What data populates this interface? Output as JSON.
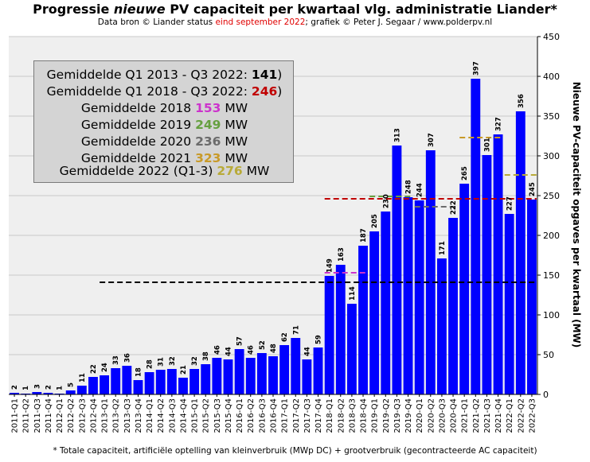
{
  "title": {
    "part1": "Progressie ",
    "part2": "nieuwe",
    "part3": " PV capaciteit  per kwartaal vlg. administratie  Liander*"
  },
  "subtitle": {
    "part1": "Data bron © Liander status ",
    "part2": "eind september 2022",
    "part3": "; grafiek © Peter J. Segaar / www.polderpv.nl"
  },
  "footnote": "* Totale capaciteit, artificiële optelling van kleinverbruik (MWp DC) + grootverbruik (gecontracteerde AC capaciteit)",
  "infobox": {
    "lines": [
      {
        "label": "Gemiddelde Q1 2013 - Q3 2022: ",
        "value": "141",
        "suffix": ")",
        "color": "#000000"
      },
      {
        "label": "Gemiddelde Q1 2018 - Q3 2022: ",
        "value": "246",
        "suffix": ")",
        "color": "#c00000"
      },
      {
        "label": "Gemiddelde 2018 ",
        "value": "153",
        "suffix": " MW",
        "color": "#cc33cc"
      },
      {
        "label": "Gemiddelde 2019 ",
        "value": "249",
        "suffix": " MW",
        "color": "#66a040"
      },
      {
        "label": "Gemiddelde 2020 ",
        "value": "236",
        "suffix": " MW",
        "color": "#6b6b6b"
      },
      {
        "label": "Gemiddelde 2021 ",
        "value": "323",
        "suffix": " MW",
        "color": "#c89a28"
      },
      {
        "label": "Gemiddelde 2022 (Q1-3) ",
        "value": "276",
        "suffix": " MW",
        "color": "#b8aa38"
      }
    ]
  },
  "chart_data": {
    "type": "bar",
    "categories": [
      "2011-Q1",
      "2011-Q2",
      "2011-Q3",
      "2011-Q4",
      "2012-Q1",
      "2012-Q2",
      "2012-Q3",
      "2012-Q4",
      "2013-Q1",
      "2013-Q2",
      "2013-Q3",
      "2013-Q4",
      "2014-Q1",
      "2014-Q2",
      "2014-Q3",
      "2014-Q4",
      "2015-Q1",
      "2015-Q2",
      "2015-Q3",
      "2015-Q4",
      "2016-Q1",
      "2016-Q2",
      "2016-Q3",
      "2016-Q4",
      "2017-Q1",
      "2017-Q2",
      "2017-Q3",
      "2017-Q4",
      "2018-Q1",
      "2018-Q2",
      "2018-Q3",
      "2018-Q4",
      "2019-Q1",
      "2019-Q2",
      "2019-Q3",
      "2019-Q4",
      "2020-Q1",
      "2020-Q2",
      "2020-Q3",
      "2020-Q4",
      "2021-Q1",
      "2021-Q2",
      "2021-Q3",
      "2021-Q4",
      "2022-Q1",
      "2022-Q2",
      "2022-Q3"
    ],
    "values": [
      2,
      1,
      3,
      2,
      1,
      5,
      11,
      22,
      24,
      33,
      36,
      18,
      28,
      31,
      32,
      21,
      32,
      38,
      46,
      44,
      57,
      46,
      52,
      48,
      62,
      71,
      44,
      59,
      149,
      163,
      114,
      187,
      205,
      230,
      313,
      248,
      244,
      307,
      171,
      222,
      265,
      397,
      301,
      327,
      227,
      356,
      245
    ],
    "data_labels": [
      "2",
      "1",
      "3",
      "2",
      "1",
      "5",
      "11",
      "22",
      "24",
      "33",
      "36",
      "18",
      "28",
      "31",
      "32",
      "21",
      "32",
      "38",
      "46",
      "44",
      "57",
      "46",
      "52",
      "48",
      "62",
      "71",
      "44",
      "59",
      "149",
      "163",
      "114",
      "187",
      "205",
      "230",
      "313",
      "248",
      "244",
      "307",
      "171",
      "222",
      "265",
      "397",
      "301",
      "327",
      "227",
      "356",
      "245"
    ],
    "bar_color": "#0000ff",
    "ylabel": "Nieuwe PV-capaciteit opgaves per kwartaal (MW)",
    "ylim": [
      0,
      450
    ],
    "yticks": [
      0,
      50,
      100,
      150,
      200,
      250,
      300,
      350,
      400,
      450
    ],
    "ytick_labels": [
      "0",
      "50",
      "100",
      "150",
      "200",
      "250",
      "300",
      "350",
      "400",
      "450"
    ],
    "y_axis_side": "right",
    "grid": true,
    "average_lines": [
      {
        "value": 141,
        "from": "2013-Q1",
        "to": "2022-Q3",
        "color": "#000000"
      },
      {
        "value": 246,
        "from": "2018-Q1",
        "to": "2022-Q3",
        "color": "#c00000"
      },
      {
        "value": 153,
        "from": "2018-Q1",
        "to": "2018-Q4",
        "color": "#cc33cc"
      },
      {
        "value": 249,
        "from": "2019-Q1",
        "to": "2019-Q4",
        "color": "#66a040"
      },
      {
        "value": 236,
        "from": "2020-Q1",
        "to": "2020-Q4",
        "color": "#6b6b6b"
      },
      {
        "value": 323,
        "from": "2021-Q1",
        "to": "2021-Q4",
        "color": "#c89a28"
      },
      {
        "value": 276,
        "from": "2022-Q1",
        "to": "2022-Q3",
        "color": "#b8aa38"
      }
    ]
  }
}
